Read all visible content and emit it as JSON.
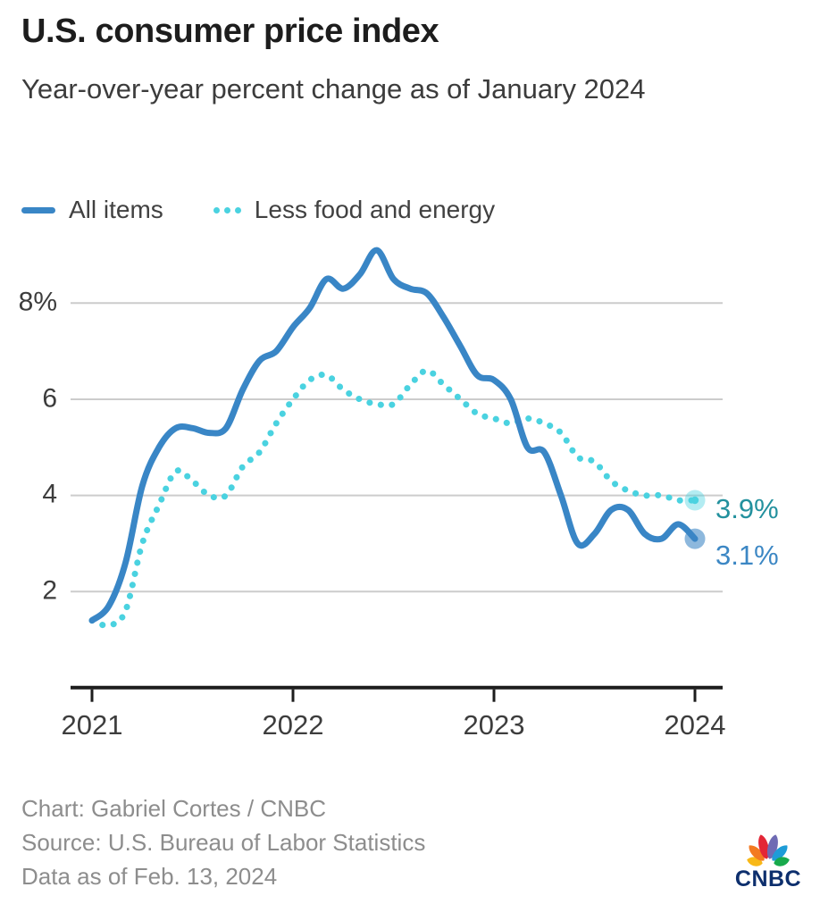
{
  "header": {
    "title": "U.S. consumer price index",
    "subtitle": "Year-over-year percent change as of January 2024"
  },
  "legend": [
    {
      "label": "All items",
      "color": "#3986c6",
      "style": "solid"
    },
    {
      "label": "Less food and energy",
      "color": "#4ad2e0",
      "style": "dotted"
    }
  ],
  "chart_data": {
    "type": "line",
    "title": "U.S. consumer price index",
    "xlabel": "",
    "ylabel": "Year-over-year percent change",
    "grid": true,
    "legend_position": "top",
    "ylim": [
      0,
      9.5
    ],
    "x": [
      "2021-01",
      "2021-02",
      "2021-03",
      "2021-04",
      "2021-05",
      "2021-06",
      "2021-07",
      "2021-08",
      "2021-09",
      "2021-10",
      "2021-11",
      "2021-12",
      "2022-01",
      "2022-02",
      "2022-03",
      "2022-04",
      "2022-05",
      "2022-06",
      "2022-07",
      "2022-08",
      "2022-09",
      "2022-10",
      "2022-11",
      "2022-12",
      "2023-01",
      "2023-02",
      "2023-03",
      "2023-04",
      "2023-05",
      "2023-06",
      "2023-07",
      "2023-08",
      "2023-09",
      "2023-10",
      "2023-11",
      "2023-12",
      "2024-01"
    ],
    "series": [
      {
        "name": "All items",
        "color": "#3986c6",
        "style": "solid",
        "values": [
          1.4,
          1.7,
          2.6,
          4.2,
          5.0,
          5.4,
          5.4,
          5.3,
          5.4,
          6.2,
          6.8,
          7.0,
          7.5,
          7.9,
          8.5,
          8.3,
          8.6,
          9.1,
          8.5,
          8.3,
          8.2,
          7.7,
          7.1,
          6.5,
          6.4,
          6.0,
          5.0,
          4.9,
          4.0,
          3.0,
          3.2,
          3.7,
          3.7,
          3.2,
          3.1,
          3.4,
          3.1
        ]
      },
      {
        "name": "Less food and energy",
        "color": "#4ad2e0",
        "style": "dotted",
        "values": [
          1.4,
          1.3,
          1.6,
          3.0,
          3.8,
          4.5,
          4.3,
          4.0,
          4.0,
          4.6,
          4.9,
          5.5,
          6.0,
          6.4,
          6.5,
          6.2,
          6.0,
          5.9,
          5.9,
          6.3,
          6.6,
          6.3,
          6.0,
          5.7,
          5.6,
          5.5,
          5.6,
          5.5,
          5.3,
          4.8,
          4.7,
          4.3,
          4.1,
          4.0,
          4.0,
          3.9,
          3.9
        ]
      }
    ],
    "yticks": [
      {
        "value": 8,
        "label": "8%"
      },
      {
        "value": 6,
        "label": "6"
      },
      {
        "value": 4,
        "label": "4"
      },
      {
        "value": 2,
        "label": "2"
      }
    ],
    "xticks": [
      {
        "index": 0,
        "label": "2021"
      },
      {
        "index": 12,
        "label": "2022"
      },
      {
        "index": 24,
        "label": "2023"
      },
      {
        "index": 36,
        "label": "2024"
      }
    ],
    "end_labels": [
      {
        "series": "Less food and energy",
        "text": "3.9%",
        "color": "#23919e"
      },
      {
        "series": "All items",
        "text": "3.1%",
        "color": "#3c87c4"
      }
    ],
    "colors": {
      "gridline": "#cccccc",
      "axis": "#1d1d1d",
      "tick_text": "#3d3d3d"
    }
  },
  "footer": {
    "lines": [
      "Chart: Gabriel Cortes / CNBC",
      "Source: U.S. Bureau of Labor Statistics",
      "Data as of Feb. 13, 2024"
    ]
  },
  "logo": {
    "text": "CNBC",
    "feather_colors": [
      "#f8b817",
      "#f37a21",
      "#e32636",
      "#6f6bb4",
      "#1e9cd7",
      "#18aa4c"
    ]
  }
}
